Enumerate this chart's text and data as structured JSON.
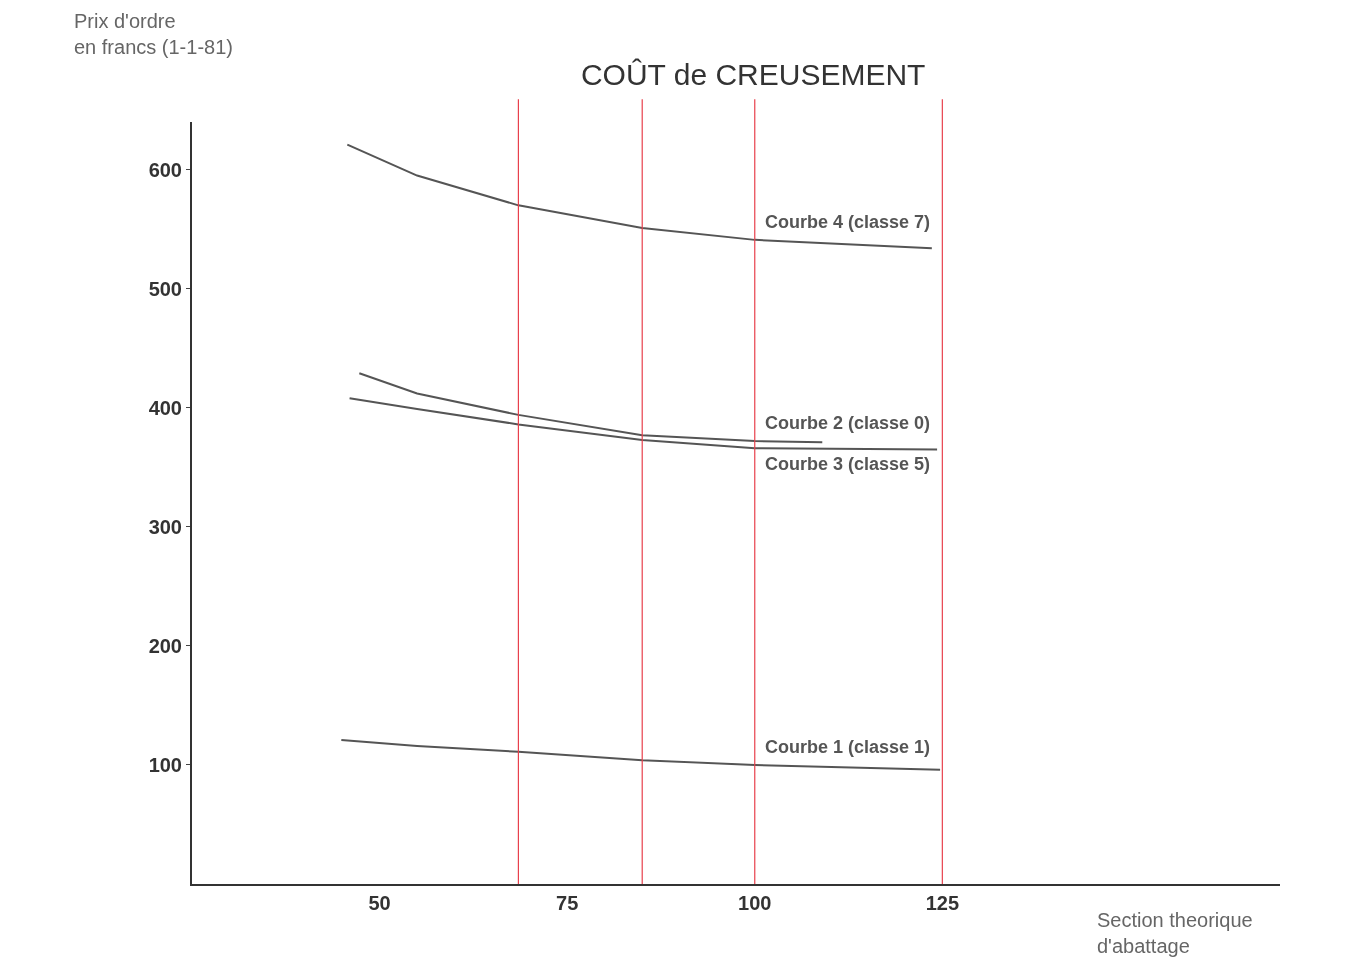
{
  "chart_data": {
    "type": "line",
    "title": "COÛT de CREUSEMENT",
    "xlabel": "Section theorique\nd'abattage",
    "ylabel": "Prix d'ordre\nen francs (1-1-81)",
    "xlim": [
      25,
      170
    ],
    "xticks": [
      50,
      75,
      100,
      125
    ],
    "ylim": [
      0,
      640
    ],
    "yticks": [
      100,
      200,
      300,
      400,
      500,
      600
    ],
    "grid": false,
    "legend": false,
    "marker": "none",
    "line_style": "solid",
    "series": [
      {
        "name": "Courbe 1 (classe 1)",
        "color": "#555555",
        "x": [
          44.9,
          55,
          68.5,
          85,
          100,
          124.7
        ],
        "values": [
          121,
          116,
          111,
          104,
          100,
          96
        ]
      },
      {
        "name": "Courbe 2 (classe 0)",
        "color": "#555555",
        "x": [
          47.3,
          55,
          68.5,
          85,
          100,
          109
        ],
        "values": [
          429,
          412,
          394,
          377,
          372,
          371
        ]
      },
      {
        "name": "Courbe 3 (classe 5)",
        "color": "#555555",
        "x": [
          46,
          55,
          68.5,
          85,
          100,
          124.3
        ],
        "values": [
          408,
          399,
          386,
          373,
          366,
          365
        ]
      },
      {
        "name": "Courbe 4 (classe 7)",
        "color": "#555555",
        "x": [
          45.7,
          55,
          68.5,
          85,
          100,
          123.6
        ],
        "values": [
          621,
          595,
          570,
          551,
          541,
          534
        ]
      }
    ],
    "ref_lines": [
      {
        "axis": "x",
        "value": 68.5,
        "color": "#e8404c"
      },
      {
        "axis": "x",
        "value": 85,
        "color": "#e8404c"
      },
      {
        "axis": "x",
        "value": 100,
        "color": "#e8404c"
      },
      {
        "axis": "x",
        "value": 125,
        "color": "#e8404c"
      }
    ]
  }
}
